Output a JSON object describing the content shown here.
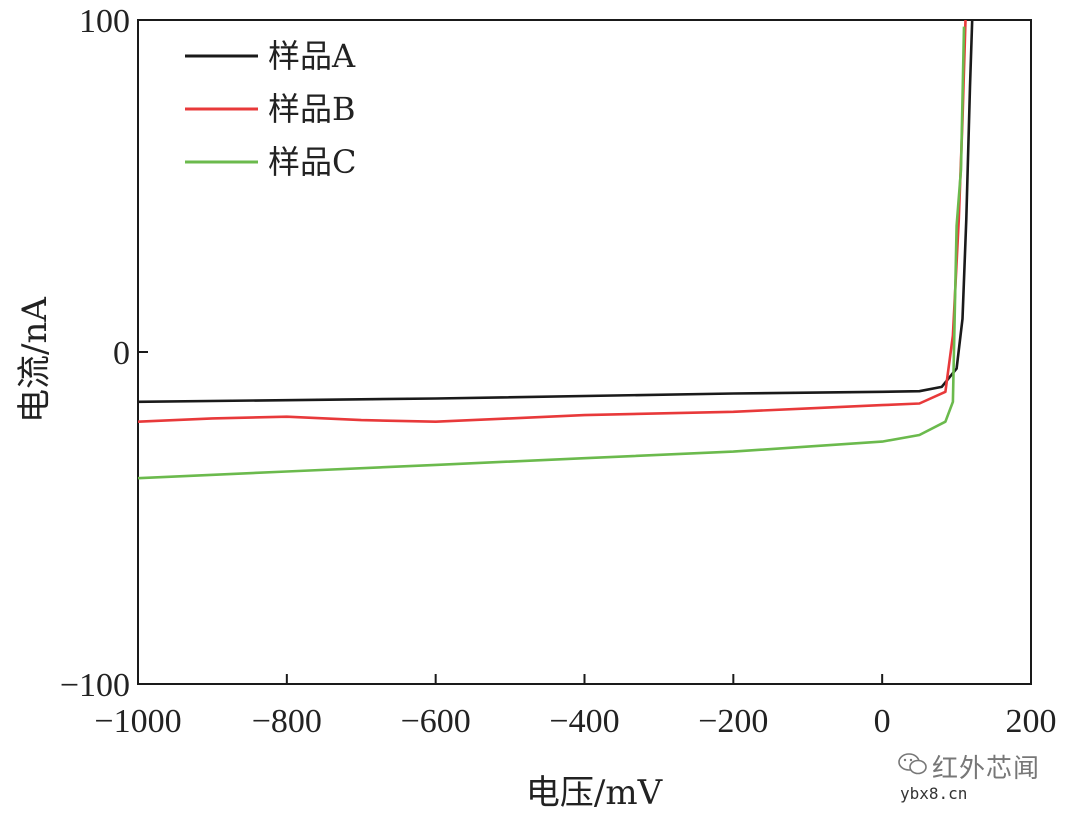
{
  "chart_data": {
    "type": "line",
    "xlabel": "电压/mV",
    "ylabel": "电流/nA",
    "xlim": [
      -1000,
      200
    ],
    "ylim": [
      -100,
      100
    ],
    "x_ticks": [
      -1000,
      -800,
      -600,
      -400,
      -200,
      0,
      200
    ],
    "x_tick_labels": [
      "−1000",
      "−800",
      "−600",
      "−400",
      "−200",
      "0",
      "200"
    ],
    "y_ticks": [
      -100,
      0,
      100
    ],
    "y_tick_labels": [
      "−100",
      "0",
      "100"
    ],
    "legend_position": "top-left",
    "series": [
      {
        "name": "样品A",
        "color": "#1a1a1a",
        "points": [
          [
            -1000,
            -15
          ],
          [
            -600,
            -14
          ],
          [
            -200,
            -12.5
          ],
          [
            0,
            -12
          ],
          [
            50,
            -11.8
          ],
          [
            80,
            -10.5
          ],
          [
            100,
            -5
          ],
          [
            108,
            10
          ],
          [
            113,
            40
          ],
          [
            118,
            80
          ],
          [
            121,
            100
          ]
        ]
      },
      {
        "name": "样品B",
        "color": "#e8393a",
        "points": [
          [
            -1000,
            -21
          ],
          [
            -900,
            -20
          ],
          [
            -800,
            -19.5
          ],
          [
            -700,
            -20.5
          ],
          [
            -600,
            -21
          ],
          [
            -500,
            -20
          ],
          [
            -400,
            -19
          ],
          [
            -200,
            -18
          ],
          [
            -100,
            -17
          ],
          [
            0,
            -16
          ],
          [
            50,
            -15.5
          ],
          [
            85,
            -12
          ],
          [
            95,
            5
          ],
          [
            103,
            40
          ],
          [
            108,
            70
          ],
          [
            112,
            100
          ]
        ]
      },
      {
        "name": "样品C",
        "color": "#6bba4d",
        "points": [
          [
            -1000,
            -38
          ],
          [
            -800,
            -36
          ],
          [
            -600,
            -34
          ],
          [
            -400,
            -32
          ],
          [
            -200,
            -30
          ],
          [
            -100,
            -28.5
          ],
          [
            0,
            -27
          ],
          [
            50,
            -25
          ],
          [
            85,
            -21
          ],
          [
            95,
            -15
          ],
          [
            100,
            38
          ],
          [
            106,
            55
          ],
          [
            110,
            98
          ]
        ]
      }
    ]
  },
  "watermark": {
    "icon": "wechat-icon",
    "name": "红外芯闻",
    "url": "ybx8.cn"
  }
}
